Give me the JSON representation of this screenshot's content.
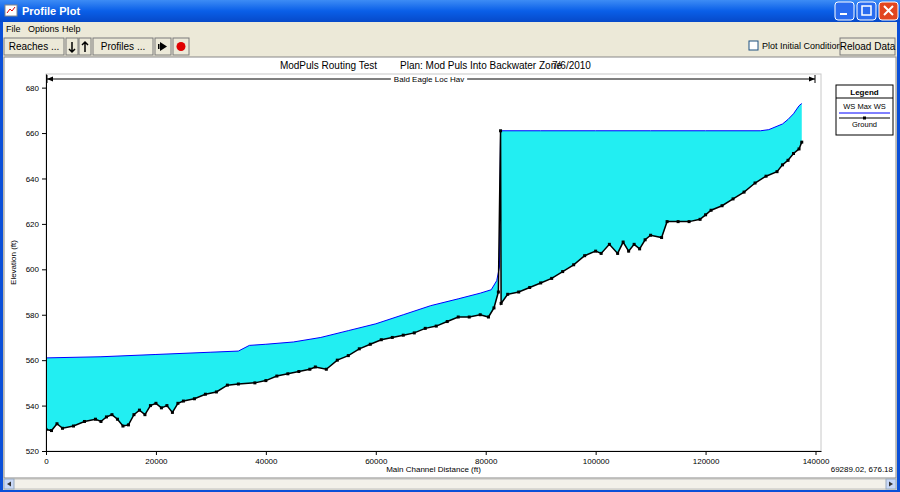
{
  "window": {
    "title": "Profile Plot",
    "menu": [
      "File",
      "Options",
      "Help"
    ],
    "toolbar": {
      "reaches": "Reaches ...",
      "profiles": "Profiles ...",
      "checkbox": "Plot Initial Conditions",
      "reload": "Reload Data"
    },
    "cursor_readout": "69289.02, 676.18"
  },
  "chart_data": {
    "type": "line",
    "title": "ModPuls Routing Test",
    "subtitle": "Plan: Mod Puls Into Backwater Zone",
    "date": "7/6/2010",
    "reach_label": "Bald Eagle Loc Hav",
    "xlabel": "Main Channel Distance (ft)",
    "ylabel": "Elevation (ft)",
    "xlim": [
      0,
      141000
    ],
    "xticks": [
      0,
      20000,
      40000,
      60000,
      80000,
      100000,
      120000,
      140000
    ],
    "ylim": [
      520,
      686
    ],
    "yticks": [
      520,
      540,
      560,
      580,
      600,
      620,
      640,
      660,
      680
    ],
    "grid": false,
    "legend": "right",
    "legend_title": "Legend",
    "series": [
      {
        "name": "WS Max WS",
        "color": "#0000ff",
        "line_style": "solid",
        "x": [
          0,
          10000,
          20000,
          30000,
          35000,
          37000,
          40000,
          45000,
          50000,
          55000,
          60000,
          65000,
          70000,
          75000,
          79000,
          81000,
          82000,
          82500,
          82700,
          90000,
          100000,
          110000,
          120000,
          130000,
          131500,
          133000,
          134000,
          135000,
          136000,
          137000,
          137500
        ],
        "values": [
          561,
          561.5,
          562.5,
          563.5,
          564,
          566.5,
          567,
          568,
          570,
          573,
          576,
          580,
          584,
          587,
          589.5,
          591,
          595,
          601,
          661,
          661,
          661,
          661,
          661,
          661,
          661.5,
          663,
          664,
          666,
          668.5,
          672,
          673
        ]
      },
      {
        "name": "Ground",
        "color": "#000000",
        "line_style": "solid",
        "marker": "square",
        "x": [
          0,
          1000,
          2000,
          3000,
          5000,
          7000,
          9000,
          10000,
          11000,
          12000,
          13000,
          14000,
          15000,
          16000,
          17000,
          18000,
          19000,
          20000,
          21000,
          22000,
          23000,
          24000,
          25000,
          27000,
          29000,
          31000,
          33000,
          35000,
          38000,
          40000,
          42000,
          44000,
          46000,
          48000,
          49000,
          51000,
          53000,
          55000,
          57000,
          59000,
          61000,
          63000,
          65000,
          67000,
          69000,
          71000,
          73000,
          75000,
          77000,
          79000,
          80500,
          81500,
          82300,
          82700,
          82800,
          84000,
          86000,
          88000,
          90000,
          92000,
          94000,
          96000,
          98000,
          100000,
          101000,
          102500,
          104000,
          105000,
          106000,
          107000,
          108000,
          109000,
          110000,
          112000,
          113000,
          115000,
          117000,
          119000,
          120000,
          121000,
          123000,
          125000,
          127000,
          129000,
          131000,
          133000,
          134000,
          135000,
          136000,
          137000,
          137500
        ],
        "values": [
          529.5,
          529,
          532,
          530,
          531,
          533,
          534,
          533,
          535,
          536,
          534,
          531,
          531.5,
          536,
          538,
          536,
          540,
          541,
          539,
          540,
          537,
          541,
          542,
          543,
          545,
          546,
          549,
          549.5,
          550,
          551,
          553,
          554,
          555,
          556,
          557,
          556,
          560,
          562,
          565,
          567,
          569,
          570,
          571,
          572,
          574,
          575,
          577,
          579,
          579,
          580,
          579,
          583,
          590,
          661,
          585,
          589,
          590,
          592,
          594,
          596,
          599,
          602,
          606,
          608,
          607,
          611,
          607,
          612,
          608,
          611,
          609,
          613,
          615,
          614,
          621,
          621,
          621,
          622,
          624,
          626,
          628,
          631,
          634,
          638,
          641,
          643,
          646,
          648,
          651,
          653,
          656
        ]
      }
    ]
  }
}
